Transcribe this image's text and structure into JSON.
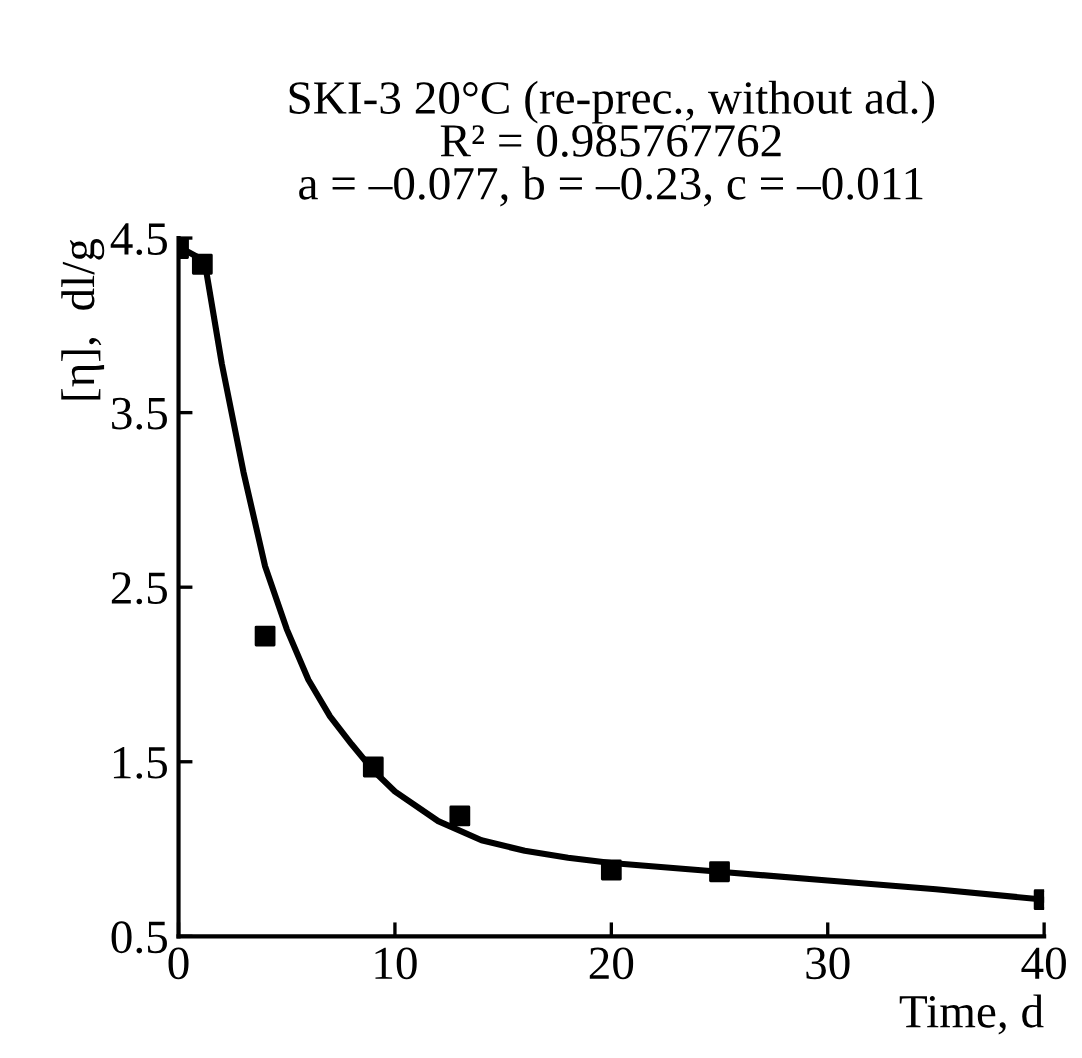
{
  "chart_data": {
    "type": "scatter",
    "title": "SKI-3 20°C (re-prec., without ad.)\nR² = 0.985767762\na = –0.077, b = –0.23, c = –0.011",
    "xlabel": "Time, d",
    "ylabel": "[η],  dl/g",
    "x": [
      0,
      1.1,
      4,
      9,
      13,
      20,
      25,
      40
    ],
    "marker": "square",
    "grid": false,
    "legend": false,
    "series": [
      {
        "color": "#000000",
        "values": [
          4.44,
          4.35,
          2.22,
          1.47,
          1.19,
          0.88,
          0.87,
          0.71
        ]
      },
      {
        "type": "line",
        "color": "#000000",
        "marker": "none",
        "line_style": "solid",
        "x": [
          0,
          1.2,
          2,
          3,
          4,
          5,
          6,
          7,
          8,
          9,
          10,
          12,
          14,
          16,
          18,
          20,
          25,
          30,
          35,
          40
        ],
        "values": [
          4.45,
          4.37,
          3.78,
          3.16,
          2.62,
          2.26,
          1.97,
          1.76,
          1.6,
          1.45,
          1.33,
          1.16,
          1.05,
          0.99,
          0.95,
          0.92,
          0.87,
          0.82,
          0.77,
          0.71
        ]
      }
    ],
    "xlim": [
      0,
      40
    ],
    "xticks": [
      0,
      10,
      20,
      30,
      40
    ],
    "ylim": [
      0.5,
      4.5
    ],
    "yticks": [
      0.5,
      1.5,
      2.5,
      3.5,
      4.5
    ]
  }
}
